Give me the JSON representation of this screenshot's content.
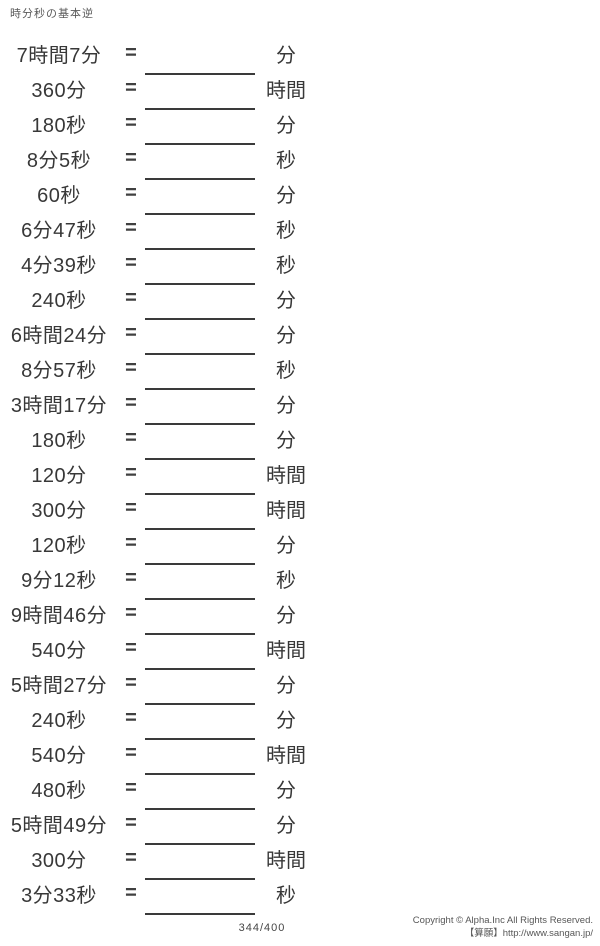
{
  "page": {
    "title": "時分秒の基本逆",
    "page_number": "344/400",
    "copyright_line1": "Copyright © Alpha.Inc All Rights Reserved.",
    "copyright_line2": "【算願】http://www.sangan.jp/"
  },
  "worksheet": {
    "equals": "=",
    "problems": [
      {
        "question": "7時間7分",
        "answer": "",
        "unit": "分"
      },
      {
        "question": "360分",
        "answer": "",
        "unit": "時間"
      },
      {
        "question": "180秒",
        "answer": "",
        "unit": "分"
      },
      {
        "question": "8分5秒",
        "answer": "",
        "unit": "秒"
      },
      {
        "question": "60秒",
        "answer": "",
        "unit": "分"
      },
      {
        "question": "6分47秒",
        "answer": "",
        "unit": "秒"
      },
      {
        "question": "4分39秒",
        "answer": "",
        "unit": "秒"
      },
      {
        "question": "240秒",
        "answer": "",
        "unit": "分"
      },
      {
        "question": "6時間24分",
        "answer": "",
        "unit": "分"
      },
      {
        "question": "8分57秒",
        "answer": "",
        "unit": "秒"
      },
      {
        "question": "3時間17分",
        "answer": "",
        "unit": "分"
      },
      {
        "question": "180秒",
        "answer": "",
        "unit": "分"
      },
      {
        "question": "120分",
        "answer": "",
        "unit": "時間"
      },
      {
        "question": "300分",
        "answer": "",
        "unit": "時間"
      },
      {
        "question": "120秒",
        "answer": "",
        "unit": "分"
      },
      {
        "question": "9分12秒",
        "answer": "",
        "unit": "秒"
      },
      {
        "question": "9時間46分",
        "answer": "",
        "unit": "分"
      },
      {
        "question": "540分",
        "answer": "",
        "unit": "時間"
      },
      {
        "question": "5時間27分",
        "answer": "",
        "unit": "分"
      },
      {
        "question": "240秒",
        "answer": "",
        "unit": "分"
      },
      {
        "question": "540分",
        "answer": "",
        "unit": "時間"
      },
      {
        "question": "480秒",
        "answer": "",
        "unit": "分"
      },
      {
        "question": "5時間49分",
        "answer": "",
        "unit": "分"
      },
      {
        "question": "300分",
        "answer": "",
        "unit": "時間"
      },
      {
        "question": "3分33秒",
        "answer": "",
        "unit": "秒"
      }
    ]
  }
}
